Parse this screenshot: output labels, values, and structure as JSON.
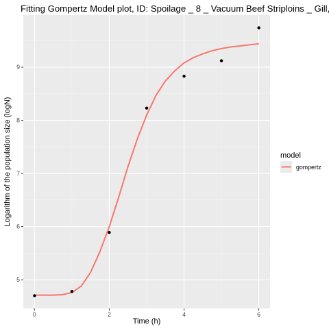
{
  "chart_data": {
    "type": "scatter",
    "title": "Fitting Gompertz Model plot, ID: Spoilage _ 8 _ Vacuum Beef Striploins _ Gill,",
    "xlabel": "Time (h)",
    "ylabel": "Logarithm of the population size (logN)",
    "xlim": [
      -0.3,
      6.3
    ],
    "ylim": [
      4.46,
      9.98
    ],
    "x_ticks": [
      0,
      2,
      4,
      6
    ],
    "y_ticks": [
      5,
      6,
      7,
      8,
      9
    ],
    "grid": true,
    "legend": {
      "title": "model",
      "position": "right",
      "entries": [
        "gompertz"
      ]
    },
    "points": [
      {
        "x": 0,
        "y": 4.7
      },
      {
        "x": 1,
        "y": 4.78
      },
      {
        "x": 2,
        "y": 5.89
      },
      {
        "x": 3,
        "y": 8.23
      },
      {
        "x": 4,
        "y": 8.83
      },
      {
        "x": 5,
        "y": 9.12
      },
      {
        "x": 6,
        "y": 9.74
      }
    ],
    "series": [
      {
        "name": "gompertz",
        "color": "#F8766D",
        "x": [
          0,
          0.25,
          0.5,
          0.75,
          1.0,
          1.25,
          1.5,
          1.75,
          2.0,
          2.25,
          2.5,
          2.75,
          3.0,
          3.25,
          3.5,
          3.75,
          4.0,
          4.25,
          4.5,
          4.75,
          5.0,
          5.25,
          5.5,
          5.75,
          6.0
        ],
        "y": [
          4.71,
          4.71,
          4.71,
          4.72,
          4.76,
          4.88,
          5.14,
          5.53,
          6.0,
          6.55,
          7.13,
          7.65,
          8.1,
          8.47,
          8.74,
          8.93,
          9.08,
          9.18,
          9.25,
          9.31,
          9.35,
          9.38,
          9.4,
          9.42,
          9.44
        ]
      }
    ],
    "point_color": "#000000",
    "panel_background": "#EBEBEB",
    "grid_color": "#FFFFFF"
  }
}
